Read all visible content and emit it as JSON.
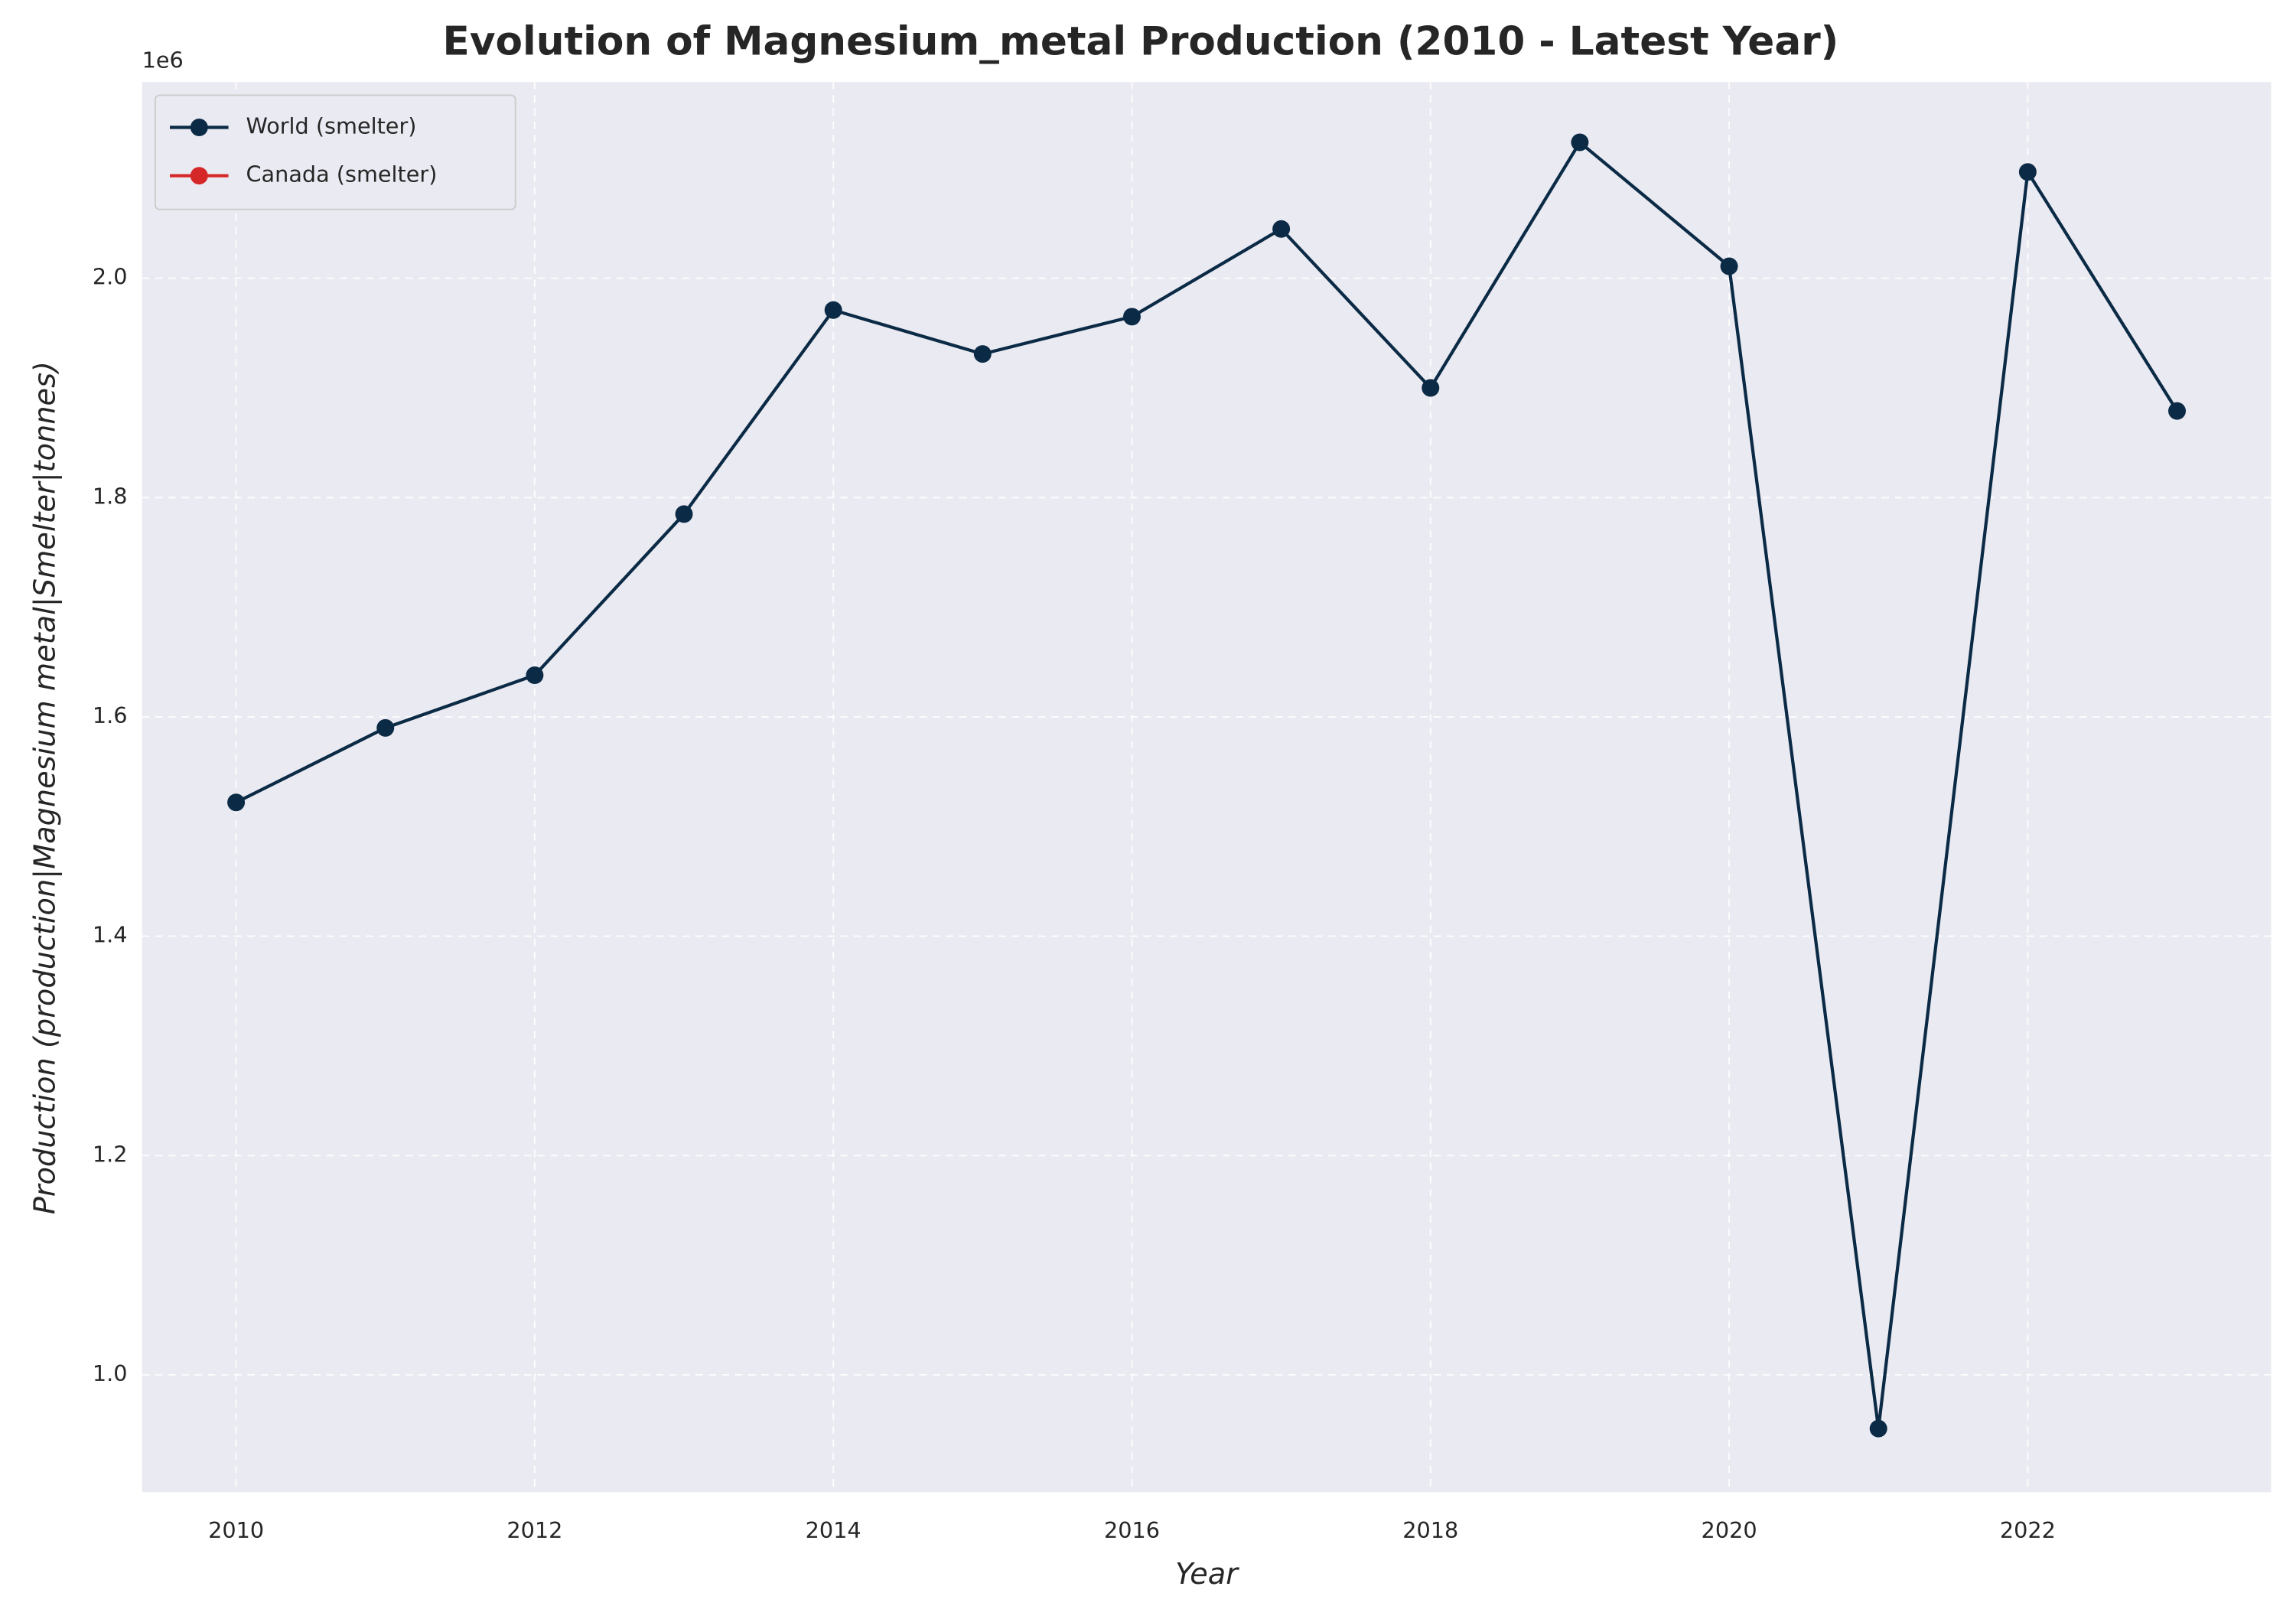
{
  "chart_data": {
    "type": "line",
    "title": "Evolution of Magnesium_metal Production (2010 - Latest Year)",
    "x_label": "Year",
    "y_label": "Production (production|Magnesium metal|Smelter|tonnes)",
    "y_offset_label": "1e6",
    "x": [
      2010,
      2011,
      2012,
      2013,
      2014,
      2015,
      2016,
      2017,
      2018,
      2019,
      2020,
      2021,
      2022,
      2023
    ],
    "series": [
      {
        "name": "World (smelter)",
        "color": "#0b2a45",
        "values": [
          1522000,
          1590000,
          1638000,
          1785000,
          1971000,
          1931000,
          1965000,
          2045000,
          1900000,
          2124000,
          2011000,
          951000,
          2097000,
          1879000
        ]
      },
      {
        "name": "Canada (smelter)",
        "color": "#d62728",
        "values": [
          null,
          null,
          null,
          null,
          null,
          null,
          null,
          null,
          null,
          null,
          null,
          null,
          null,
          null
        ]
      }
    ],
    "xlim": [
      2009.37,
      2023.63
    ],
    "xticks": [
      2010,
      2012,
      2014,
      2016,
      2018,
      2020,
      2022
    ],
    "ylim": [
      893000,
      2179000
    ],
    "yticks": [
      {
        "value": 1000000,
        "label": "1.0"
      },
      {
        "value": 1200000,
        "label": "1.2"
      },
      {
        "value": 1400000,
        "label": "1.4"
      },
      {
        "value": 1600000,
        "label": "1.6"
      },
      {
        "value": 1800000,
        "label": "1.8"
      },
      {
        "value": 2000000,
        "label": "2.0"
      }
    ],
    "grid": true,
    "legend": "upper left"
  }
}
